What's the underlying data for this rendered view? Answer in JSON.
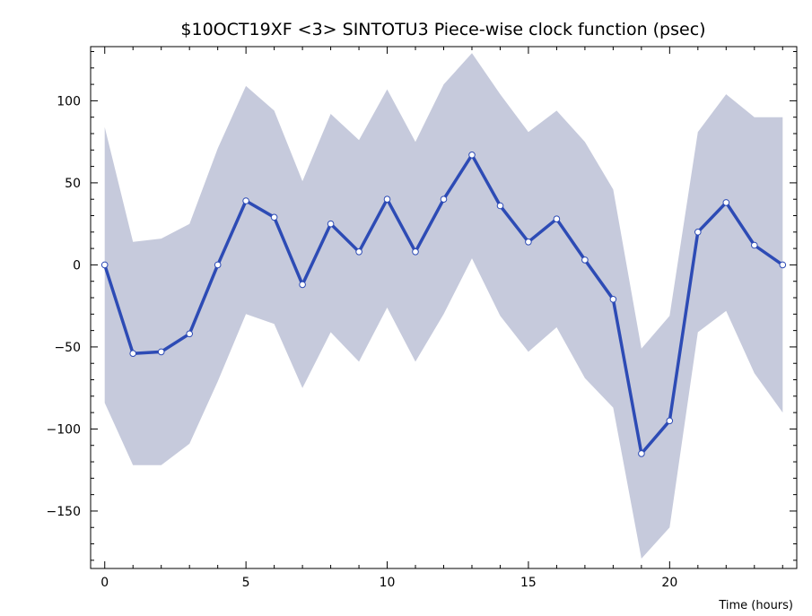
{
  "chart_data": {
    "type": "line",
    "title": "$10OCT19XF <3>  SINTOTU3  Piece-wise clock function (psec)",
    "xlabel": "Time (hours)",
    "ylabel": "",
    "xlim": [
      -0.5,
      24.5
    ],
    "ylim": [
      -185,
      133
    ],
    "xticks": [
      0,
      5,
      10,
      15,
      20
    ],
    "yticks": [
      -150,
      -100,
      -50,
      0,
      50,
      100
    ],
    "grid": false,
    "colors": {
      "line": "#2d4bb5",
      "band": "#c6cadc",
      "marker_fill": "#ffffff"
    },
    "series": [
      {
        "x": [
          0,
          1,
          2,
          3,
          4,
          5,
          6,
          7,
          8,
          9,
          10,
          11,
          12,
          13,
          14,
          15,
          16,
          17,
          18,
          19,
          20,
          21,
          22,
          23,
          24
        ],
        "values": [
          0,
          -54,
          -53,
          -42,
          0,
          39,
          29,
          -12,
          25,
          8,
          40,
          8,
          40,
          67,
          36,
          14,
          28,
          3,
          -21,
          -115,
          -95,
          20,
          38,
          12,
          0
        ],
        "upper": [
          84,
          14,
          16,
          25,
          71,
          109,
          94,
          51,
          92,
          76,
          107,
          75,
          110,
          129,
          104,
          81,
          94,
          75,
          46,
          -51,
          -31,
          81,
          104,
          90,
          90
        ],
        "lower": [
          -84,
          -122,
          -122,
          -109,
          -71,
          -30,
          -36,
          -75,
          -41,
          -59,
          -26,
          -59,
          -30,
          4,
          -31,
          -53,
          -38,
          -69,
          -87,
          -179,
          -160,
          -41,
          -28,
          -66,
          -90
        ]
      }
    ]
  }
}
